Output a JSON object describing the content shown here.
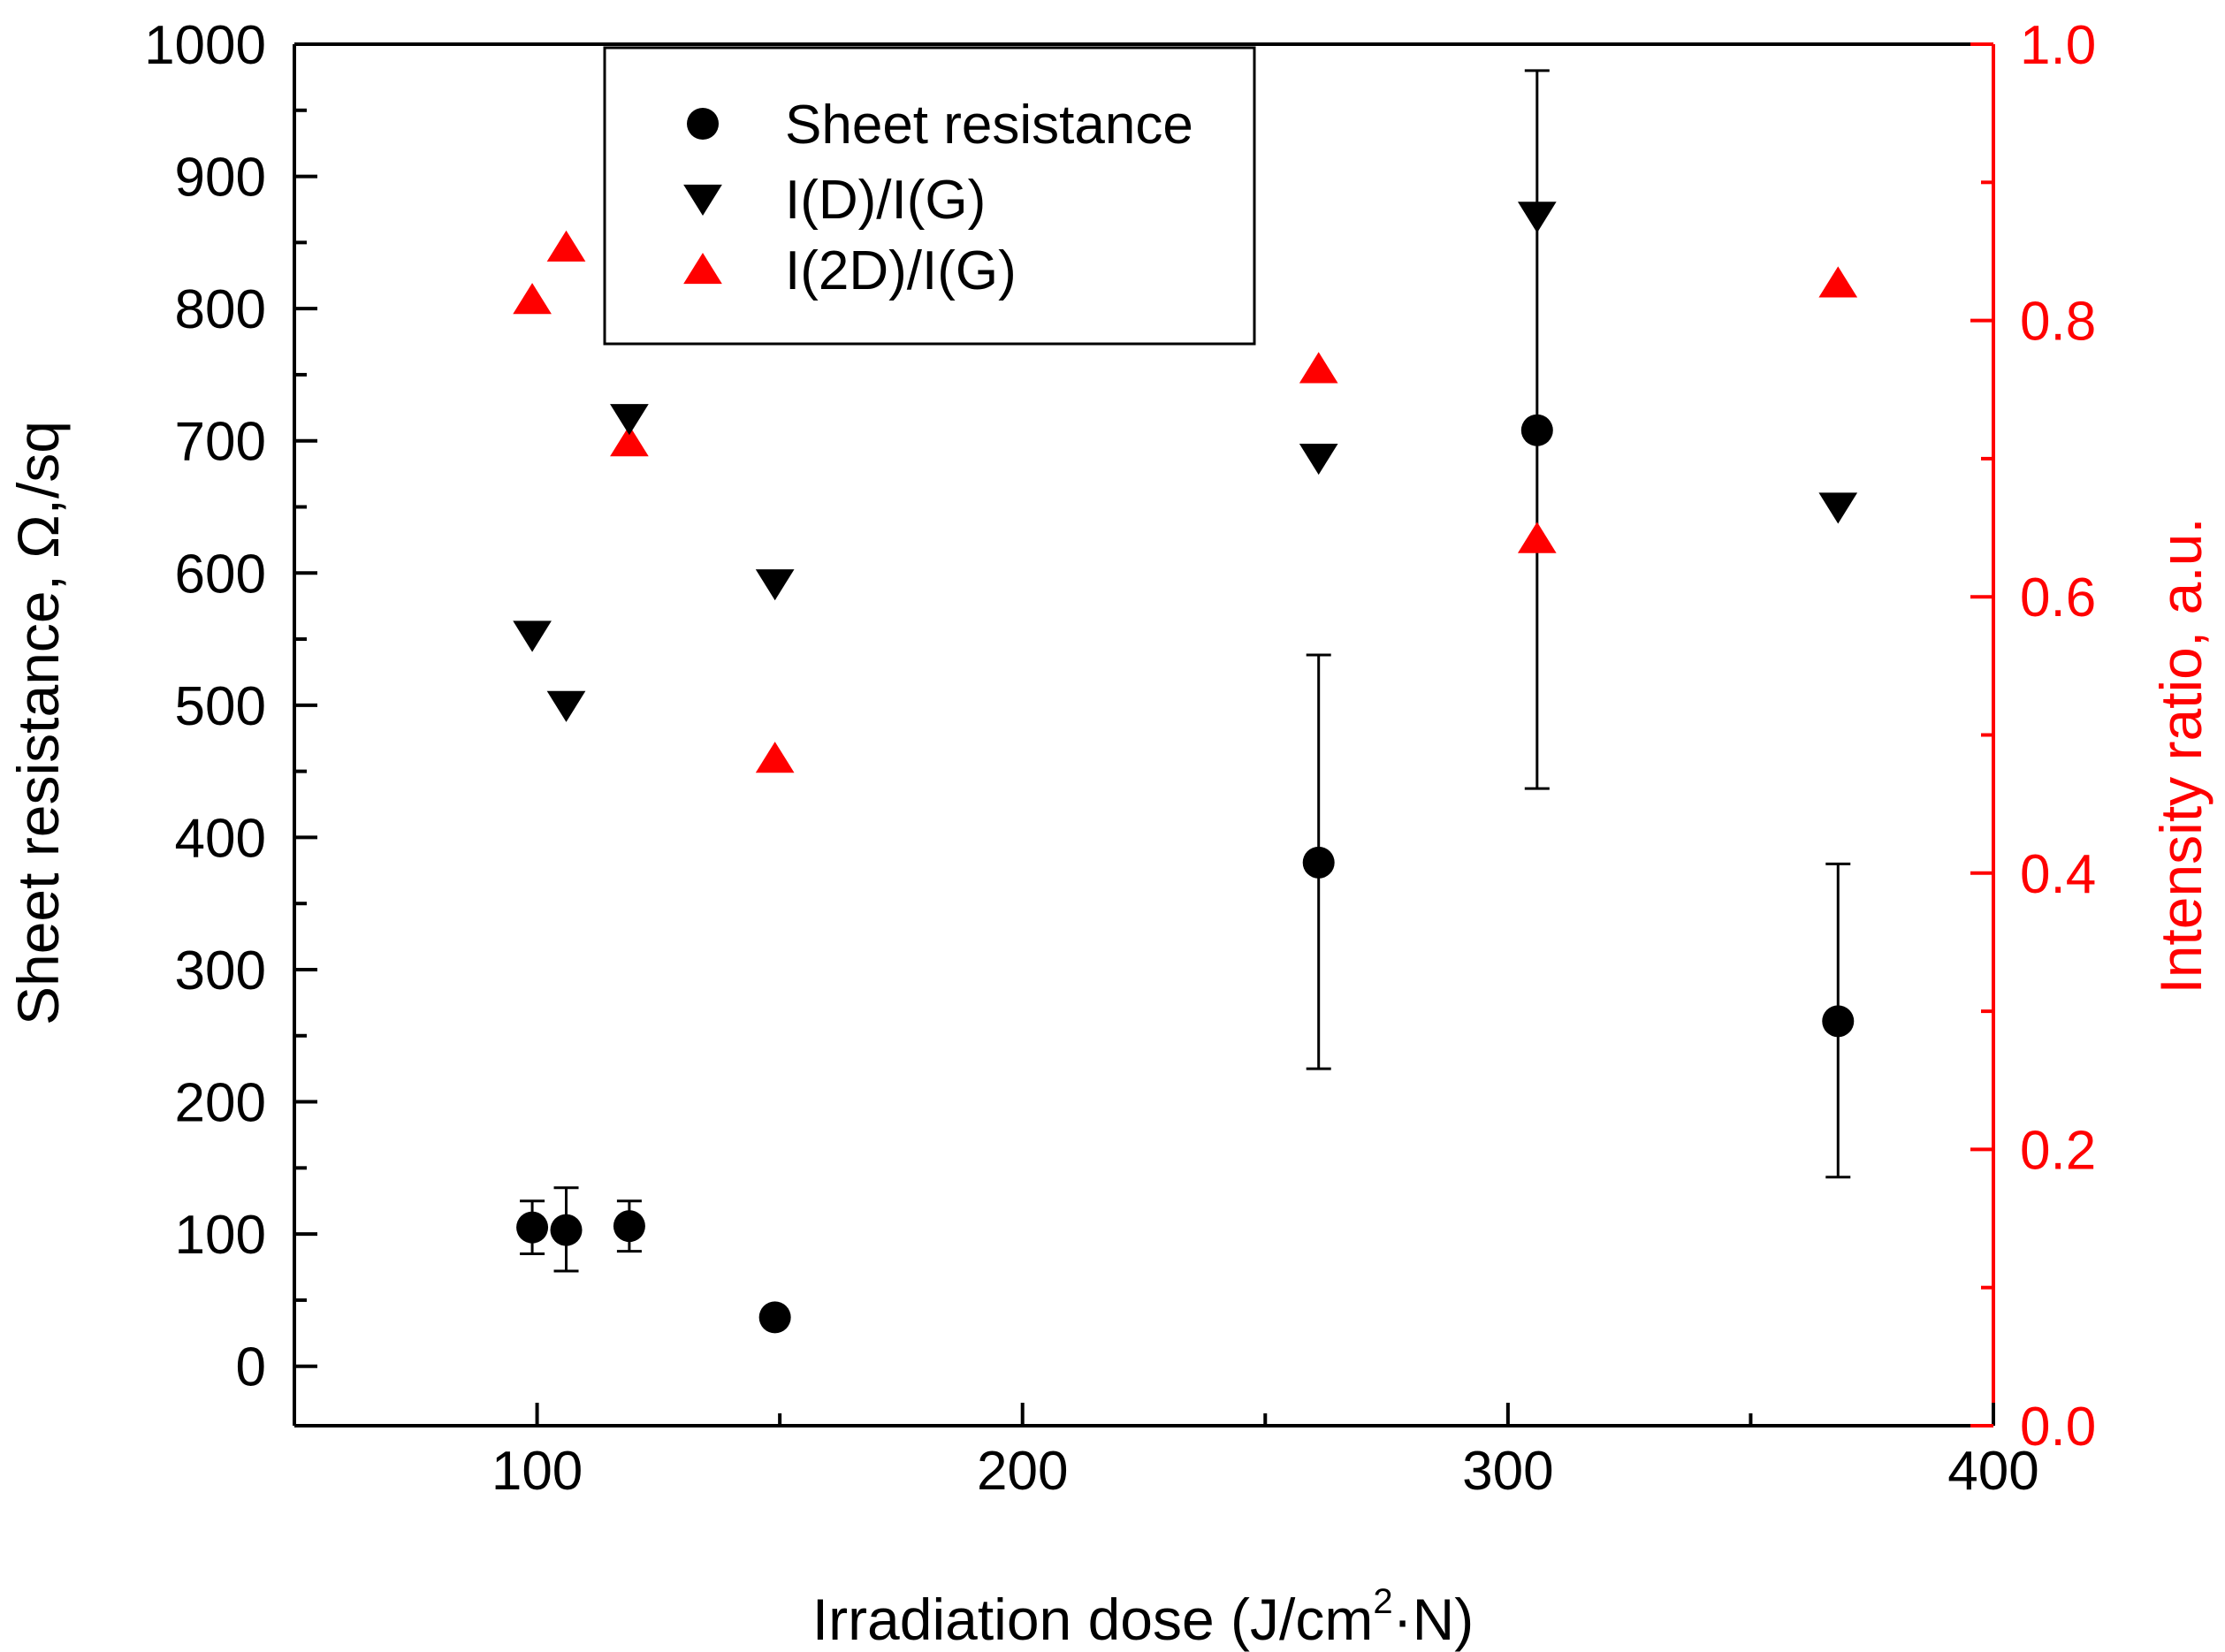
{
  "chart_data": {
    "type": "scatter",
    "x_axis": {
      "label_main": "Irradiation dose (J/cm",
      "label_sup": "2",
      "label_end": "·N)",
      "range": [
        50,
        400
      ],
      "ticks": [
        "100",
        "200",
        "300",
        "400"
      ]
    },
    "y_left": {
      "label": "Sheet resistance, Ω,/sq",
      "range": [
        -45,
        1000
      ],
      "ticks": [
        "0",
        "100",
        "200",
        "300",
        "400",
        "500",
        "600",
        "700",
        "800",
        "900",
        "1000"
      ],
      "color": "#000000"
    },
    "y_right": {
      "label": "Intensity ratio, a.u.",
      "range": [
        0,
        1.0
      ],
      "ticks": [
        "0.0",
        "0.2",
        "0.4",
        "0.6",
        "0.8",
        "1.0"
      ],
      "color": "#ff0000"
    },
    "legend": {
      "placement": "top-center",
      "entries": [
        "Sheet resistance",
        "I(D)/I(G)",
        "I(2D)/I(G)"
      ]
    },
    "series": [
      {
        "name": "Sheet resistance",
        "axis": "left",
        "marker": "circle",
        "color": "#000000",
        "points": [
          {
            "x": 99,
            "y": 105,
            "err_low": 85,
            "err_high": 125
          },
          {
            "x": 106,
            "y": 103,
            "err_low": 72,
            "err_high": 135
          },
          {
            "x": 119,
            "y": 106,
            "err_low": 87,
            "err_high": 125
          },
          {
            "x": 149,
            "y": 37,
            "err_low": 37,
            "err_high": 37
          },
          {
            "x": 261,
            "y": 381,
            "err_low": 225,
            "err_high": 538
          },
          {
            "x": 306,
            "y": 708,
            "err_low": 437,
            "err_high": 980
          },
          {
            "x": 368,
            "y": 261,
            "err_low": 143,
            "err_high": 380
          }
        ]
      },
      {
        "name": "I(D)/I(G)",
        "axis": "left",
        "marker": "triangle-down",
        "color": "#000000",
        "points": [
          {
            "x": 99,
            "y": 553
          },
          {
            "x": 106,
            "y": 500
          },
          {
            "x": 119,
            "y": 717
          },
          {
            "x": 149,
            "y": 592
          },
          {
            "x": 261,
            "y": 687
          },
          {
            "x": 306,
            "y": 870
          },
          {
            "x": 368,
            "y": 650
          }
        ]
      },
      {
        "name": "I(2D)/I(G)",
        "axis": "right",
        "marker": "triangle-up",
        "color": "#ff0000",
        "points": [
          {
            "x": 99,
            "y": 0.815
          },
          {
            "x": 106,
            "y": 0.853
          },
          {
            "x": 119,
            "y": 0.712
          },
          {
            "x": 149,
            "y": 0.483
          },
          {
            "x": 261,
            "y": 0.765
          },
          {
            "x": 306,
            "y": 0.642
          },
          {
            "x": 368,
            "y": 0.827
          }
        ]
      }
    ]
  }
}
